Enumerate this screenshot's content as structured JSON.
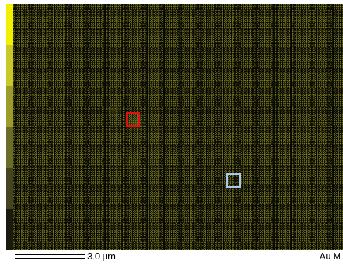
{
  "map": {
    "element_label": "Au M",
    "scale_label": "3.0 µm",
    "colorbar_colors": [
      "#f0f000",
      "#c8c828",
      "#9c9c2c",
      "#6c6c2a",
      "#444422",
      "#1a1a10"
    ],
    "roi_colors": {
      "red": "#e01010",
      "blue": "#a8c8f0"
    }
  }
}
